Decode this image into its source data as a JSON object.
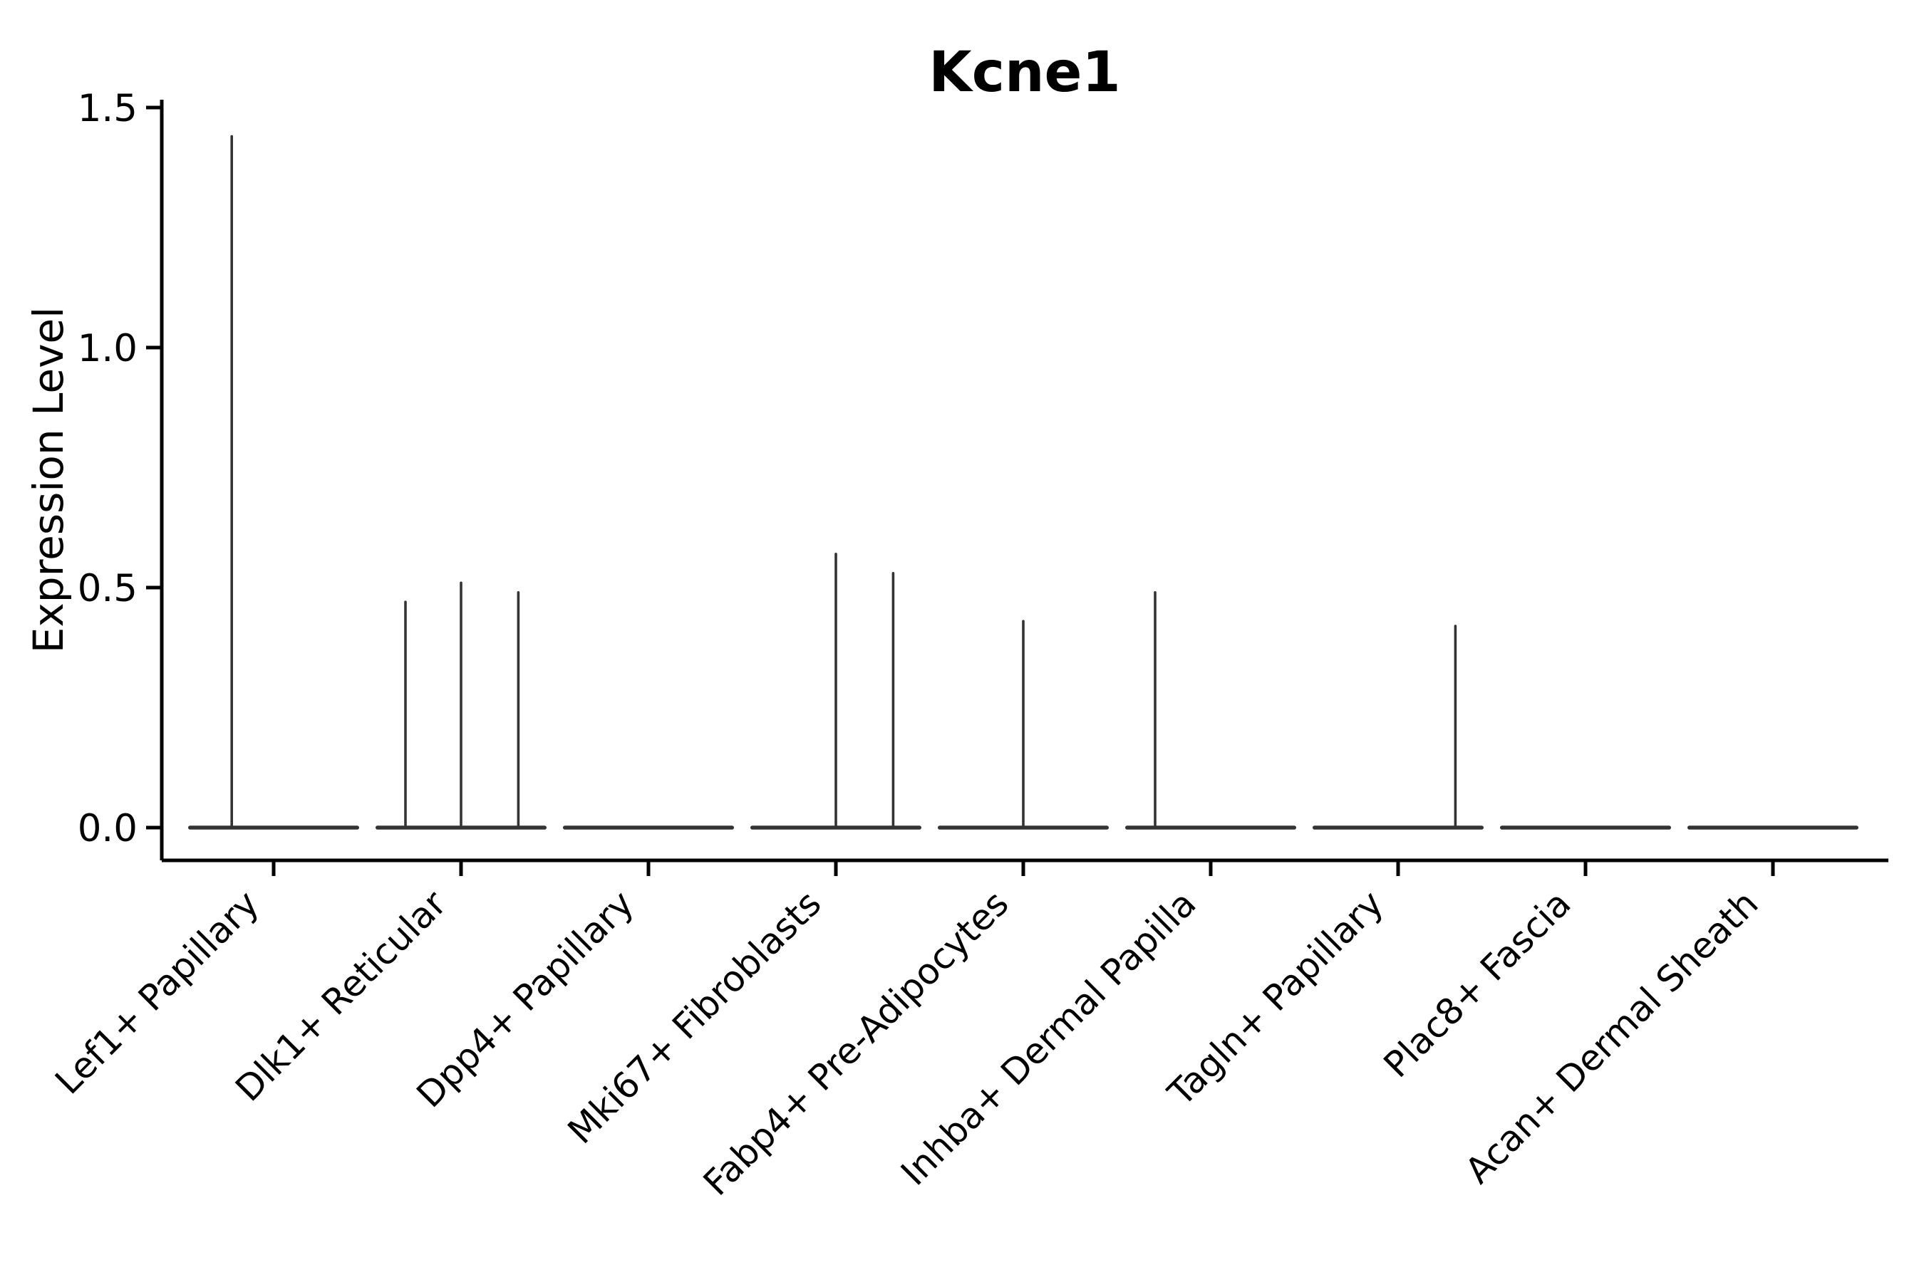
{
  "colors": {
    "violin": "#333333",
    "axis": "#000000",
    "text": "#000000",
    "background": "#ffffff"
  },
  "chart_data": {
    "type": "violin",
    "title": "Kcne1",
    "xlabel": "",
    "ylabel": "Expression Level",
    "ylim": [
      -0.07,
      1.52
    ],
    "yticks": [
      0,
      0.5,
      1,
      1.5
    ],
    "ytick_labels": [
      "0.0",
      "0.5",
      "1.0",
      "1.5"
    ],
    "grid": false,
    "legend": "none",
    "x_tick_rotation": 45,
    "categories": [
      "Lef1+ Papillary",
      "Dlk1+ Reticular",
      "Dpp4+ Papillary",
      "Mki67+ Fibroblasts",
      "Fabp4+ Pre-Adipocytes",
      "Inhba+ Dermal Papilla",
      "Tagln+ Papillary",
      "Plac8+ Fascia",
      "Acan+ Dermal Sheath"
    ],
    "violins": [
      {
        "category": "Lef1+ Papillary",
        "baseline_value": 0,
        "max_value": 1.44,
        "spikes": [
          {
            "pos_frac": -0.49,
            "value": 1.44
          }
        ]
      },
      {
        "category": "Dlk1+ Reticular",
        "baseline_value": 0,
        "max_value": 0.51,
        "spikes": [
          {
            "pos_frac": -0.65,
            "value": 0.47
          },
          {
            "pos_frac": 0.0,
            "value": 0.51
          },
          {
            "pos_frac": 0.67,
            "value": 0.49
          }
        ]
      },
      {
        "category": "Dpp4+ Papillary",
        "baseline_value": 0,
        "max_value": 0,
        "spikes": []
      },
      {
        "category": "Mki67+ Fibroblasts",
        "baseline_value": 0,
        "max_value": 0.57,
        "spikes": [
          {
            "pos_frac": 0.0,
            "value": 0.57
          },
          {
            "pos_frac": 0.67,
            "value": 0.53
          }
        ]
      },
      {
        "category": "Fabp4+ Pre-Adipocytes",
        "baseline_value": 0,
        "max_value": 0.43,
        "spikes": [
          {
            "pos_frac": 0.0,
            "value": 0.43
          }
        ]
      },
      {
        "category": "Inhba+ Dermal Papilla",
        "baseline_value": 0,
        "max_value": 0.49,
        "spikes": [
          {
            "pos_frac": -0.65,
            "value": 0.49
          }
        ]
      },
      {
        "category": "Tagln+ Papillary",
        "baseline_value": 0,
        "max_value": 0.42,
        "spikes": [
          {
            "pos_frac": 0.67,
            "value": 0.42
          }
        ]
      },
      {
        "category": "Plac8+ Fascia",
        "baseline_value": 0,
        "max_value": 0,
        "spikes": []
      },
      {
        "category": "Acan+ Dermal Sheath",
        "baseline_value": 0,
        "max_value": 0,
        "spikes": []
      }
    ]
  }
}
